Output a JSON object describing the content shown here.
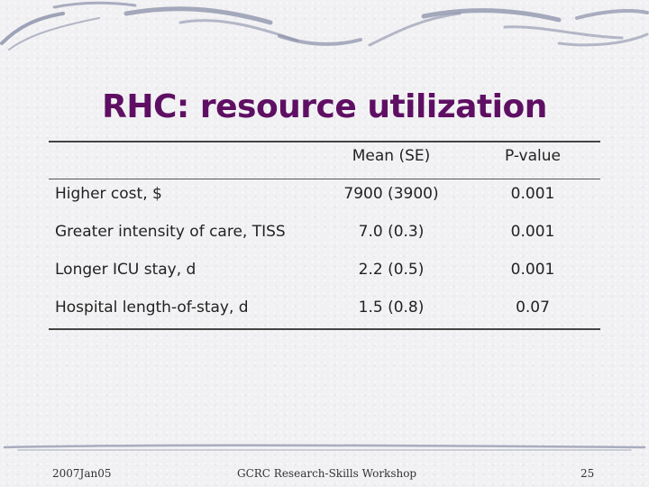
{
  "slide": {
    "title": "RHC: resource utilization",
    "table": {
      "headers": {
        "label": "",
        "mean": "Mean (SE)",
        "pvalue": "P-value"
      },
      "rows": [
        {
          "label": "Higher cost, $",
          "mean": "7900 (3900)",
          "pvalue": "0.001"
        },
        {
          "label": "Greater intensity of care, TISS",
          "mean": "7.0 (0.3)",
          "pvalue": "0.001"
        },
        {
          "label": "Longer ICU stay, d",
          "mean": "2.2 (0.5)",
          "pvalue": "0.001"
        },
        {
          "label": "Hospital length-of-stay, d",
          "mean": "1.5 (0.8)",
          "pvalue": "0.07"
        }
      ]
    },
    "footer": {
      "left": "2007Jan05",
      "center": "GCRC Research-Skills Workshop",
      "right": "25"
    }
  },
  "colors": {
    "title": "#5f0f63",
    "swoosh": "#8a8fa8",
    "background": "#f1f1f3"
  }
}
